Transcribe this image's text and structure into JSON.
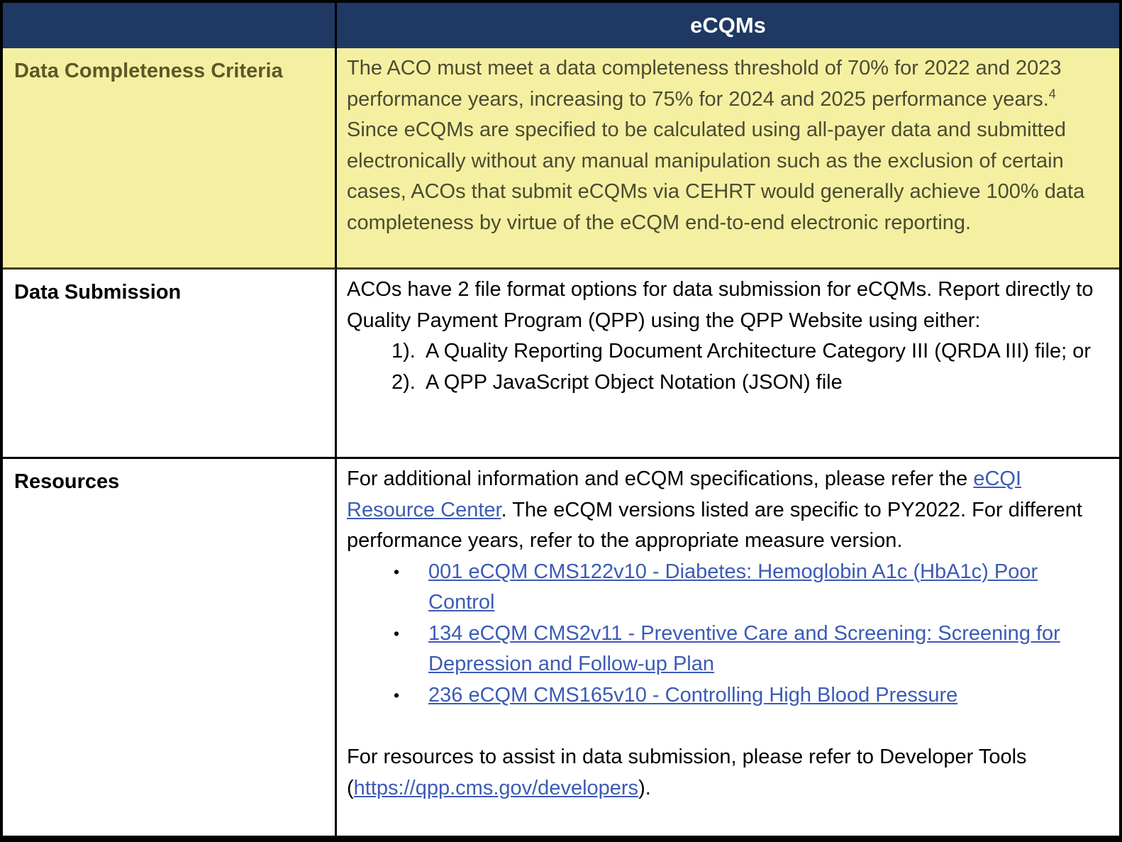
{
  "document": {
    "type": "table",
    "header": {
      "col1_label": "",
      "col2_label": "eCQMs"
    },
    "rows": {
      "completeness": {
        "label": "Data Completeness Criteria",
        "text_main": "The ACO must meet a data completeness threshold of 70% for 2022 and 2023 performance years, increasing to 75% for 2024 and 2025 performance years.",
        "footnote_marker": "4",
        "text_after_footnote": " Since eCQMs are specified to be calculated using all-payer data and submitted electronically without any manual manipulation such as the exclusion of certain cases, ACOs that submit eCQMs via CEHRT would generally achieve 100% data completeness by virtue of the eCQM end-to-end electronic reporting."
      },
      "submission": {
        "label": "Data Submission",
        "intro": "ACOs have 2 file format options for data submission for eCQMs. Report directly to Quality Payment Program (QPP) using the QPP Website using either:",
        "options": [
          {
            "marker": "1).",
            "text": "A Quality Reporting Document Architecture Category III (QRDA III) file; or"
          },
          {
            "marker": "2).",
            "text": "A QPP JavaScript Object Notation (JSON) file"
          }
        ]
      },
      "resources": {
        "label": "Resources",
        "intro_before_link": "For additional information and eCQM specifications, please refer the ",
        "intro_link": "eCQI Resource Center",
        "intro_after_link": ". The eCQM versions listed are specific to PY2022. For different performance years, refer to the appropriate measure version.",
        "bullet_char": "•",
        "measure_links": [
          "001 eCQM CMS122v10 - Diabetes: Hemoglobin A1c (HbA1c) Poor Control",
          "134 eCQM CMS2v11 - Preventive Care and Screening: Screening for Depression and Follow-up Plan",
          "236 eCQM CMS165v10 - Controlling High Blood Pressure"
        ],
        "outro_before_link": "For resources to assist in data submission, please refer to Developer Tools (",
        "outro_link": "https://qpp.cms.gov/developers",
        "outro_after_link": ")."
      }
    },
    "colors": {
      "header_bg": "#1F3864",
      "header_text": "#FFFFFF",
      "highlight_bg": "#F5F0A1",
      "highlight_label_text": "#5D5728",
      "highlight_body_text": "#4C4B33",
      "body_text": "#000000",
      "link": "#3B5BB5",
      "border": "#000000"
    }
  }
}
